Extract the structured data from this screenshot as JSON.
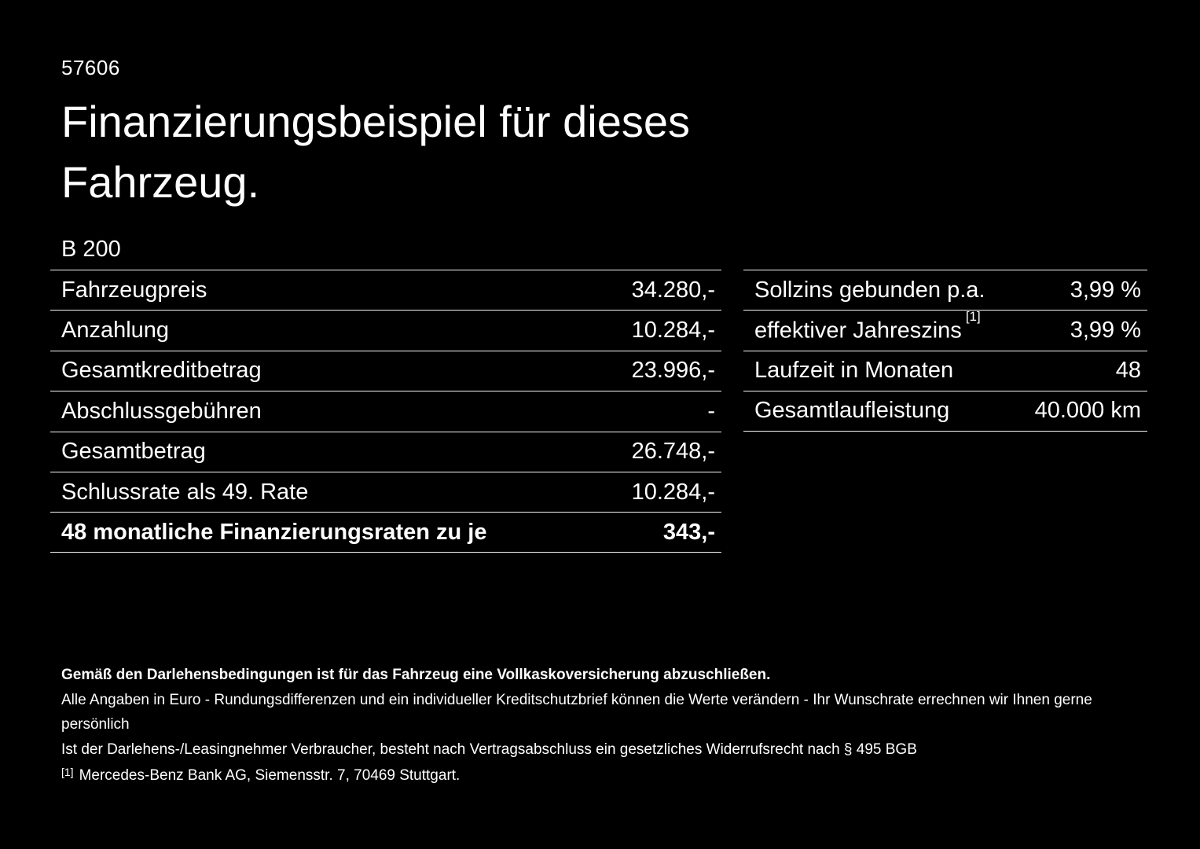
{
  "colors": {
    "background": "#000000",
    "text": "#ffffff",
    "divider": "#f5f5f5"
  },
  "header": {
    "doc_number": "57606",
    "title_line1": "Finanzierungsbeispiel für dieses",
    "title_line2": "Fahrzeug.",
    "model": "B 200"
  },
  "financing_table": {
    "rows": [
      {
        "label": "Fahrzeugpreis",
        "value": "34.280,-"
      },
      {
        "label": "Anzahlung",
        "value": "10.284,-"
      },
      {
        "label": "Gesamtkreditbetrag",
        "value": "23.996,-"
      },
      {
        "label": "Abschlussgebühren",
        "value": "-"
      },
      {
        "label": "Gesamtbetrag",
        "value": "26.748,-"
      },
      {
        "label": "Schlussrate als 49. Rate",
        "value": "10.284,-"
      },
      {
        "label": "48 monatliche Finanzierungsraten zu je",
        "value": "343,-"
      }
    ]
  },
  "conditions_table": {
    "rows": [
      {
        "label": "Sollzins gebunden p.a.",
        "value": "3,99 %"
      },
      {
        "label": "effektiver Jahreszins",
        "superscript": "[1]",
        "value": "3,99 %"
      },
      {
        "label": "Laufzeit in Monaten",
        "value": "48"
      },
      {
        "label": "Gesamtlaufleistung",
        "value": "40.000 km"
      }
    ]
  },
  "footer": {
    "insurance_note": "Gemäß den Darlehensbedingungen ist für das Fahrzeug eine Vollkaskoversicherung abzuschließen.",
    "disclaimer_line1": "Alle Angaben in Euro - Rundungsdifferenzen und ein individueller Kreditschutzbrief können die Werte verändern - Ihr Wunschrate errechnen wir Ihnen gerne persönlich",
    "disclaimer_line2": "Ist der Darlehens-/Leasingnehmer Verbraucher, besteht nach Vertragsabschluss ein gesetzliches Widerrufsrecht nach § 495 BGB",
    "footnote_marker": "[1]",
    "footnote_text": "Mercedes-Benz Bank AG, Siemensstr. 7, 70469 Stuttgart."
  }
}
